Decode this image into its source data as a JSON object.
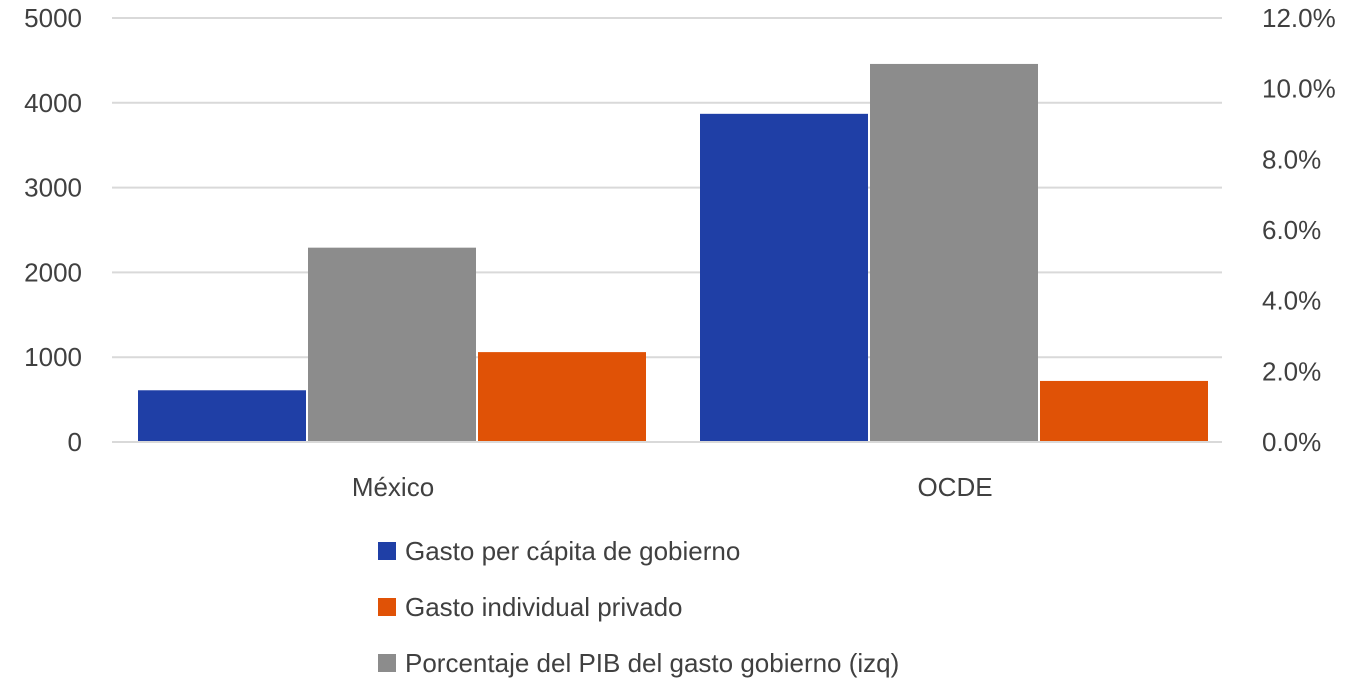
{
  "chart_data": {
    "type": "bar",
    "categories": [
      "México",
      "OCDE"
    ],
    "series": [
      {
        "name": "Gasto per cápita de gobierno",
        "axis": "left",
        "color": "#1f3fa6",
        "values": [
          610,
          3870
        ]
      },
      {
        "name": "Porcentaje del PIB del gasto gobierno (izq)",
        "axis": "right",
        "color": "#8c8c8c",
        "values": [
          5.5,
          10.7
        ]
      },
      {
        "name": "Gasto individual privado",
        "axis": "left",
        "color": "#e05206",
        "values": [
          1060,
          720
        ]
      }
    ],
    "y_left": {
      "ticks": [
        "0",
        "1000",
        "2000",
        "3000",
        "4000",
        "5000"
      ],
      "ylim": [
        0,
        5000
      ]
    },
    "y_right": {
      "ticks": [
        "0.0%",
        "2.0%",
        "4.0%",
        "6.0%",
        "8.0%",
        "10.0%",
        "12.0%"
      ],
      "ylim": [
        0,
        12
      ]
    },
    "legend": {
      "placement": "bottom",
      "entries": [
        "Gasto per cápita de gobierno",
        "Gasto individual privado",
        "Porcentaje del PIB del gasto gobierno (izq)"
      ]
    },
    "grid": true
  }
}
